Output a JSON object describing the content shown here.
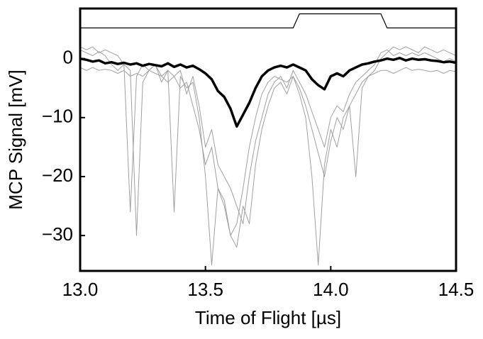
{
  "chart_data": {
    "type": "line",
    "x_label": "Time of Flight [µs]",
    "y_label": "MCP Signal [mV]",
    "xlim": [
      13.0,
      14.5
    ],
    "ylim": [
      -36,
      8.5
    ],
    "xticks": [
      {
        "value": 13.0,
        "label": "13.0"
      },
      13.5,
      {
        "value": 14.0,
        "label": "14.0"
      },
      14.5
    ],
    "yticks": [
      0,
      {
        "value": -10,
        "label": "−10"
      },
      {
        "value": -20,
        "label": "−20"
      },
      {
        "value": -30,
        "label": "−30"
      }
    ],
    "x": [
      13.0,
      13.025,
      13.05,
      13.075,
      13.1,
      13.125,
      13.15,
      13.175,
      13.2,
      13.225,
      13.25,
      13.275,
      13.3,
      13.325,
      13.35,
      13.375,
      13.4,
      13.425,
      13.45,
      13.475,
      13.5,
      13.525,
      13.55,
      13.575,
      13.6,
      13.625,
      13.65,
      13.675,
      13.7,
      13.725,
      13.75,
      13.775,
      13.8,
      13.825,
      13.85,
      13.875,
      13.9,
      13.925,
      13.95,
      13.975,
      14.0,
      14.025,
      14.05,
      14.075,
      14.1,
      14.125,
      14.15,
      14.175,
      14.2,
      14.225,
      14.25,
      14.275,
      14.3,
      14.325,
      14.35,
      14.375,
      14.4,
      14.425,
      14.45,
      14.475,
      14.5
    ],
    "series": [
      {
        "color": "#a0a0a0",
        "line_width": 1,
        "values": [
          1.5,
          1,
          0.5,
          1.2,
          0.5,
          -1,
          -2,
          -1,
          -26,
          -3,
          -1,
          -2,
          -1,
          -4,
          -2,
          -3,
          -2,
          -6,
          -3,
          -8,
          -15,
          -12,
          -18,
          -20,
          -22,
          -25,
          -28,
          -20,
          -14,
          -10,
          -6,
          -4,
          -3,
          -5,
          -2,
          -4,
          -6,
          -9,
          -12,
          -15,
          -10,
          -8,
          -9,
          -6,
          -4,
          -3,
          -2,
          -1,
          1,
          1.5,
          0.5,
          1,
          0.5,
          1,
          0.5,
          1,
          0.5,
          0,
          -0.5,
          0,
          -0.5
        ]
      },
      {
        "color": "#a0a0a0",
        "line_width": 1,
        "values": [
          2,
          1.5,
          2,
          1,
          1.5,
          1,
          0.5,
          -1,
          -2,
          -30,
          -4,
          -2,
          -1,
          -3,
          -2,
          -26,
          -3,
          -5,
          -4,
          -10,
          -20,
          -35,
          -22,
          -24,
          -30,
          -32,
          -25,
          -28,
          -18,
          -12,
          -8,
          -5,
          -4,
          -6,
          -3,
          -6,
          -10,
          -20,
          -35,
          -18,
          -12,
          -15,
          -10,
          -8,
          -20,
          -5,
          -3,
          -2,
          0,
          1,
          2,
          1.5,
          2,
          1.5,
          1,
          2,
          1.5,
          1,
          1.5,
          1,
          0.5
        ]
      },
      {
        "color": "#a0a0a0",
        "line_width": 1,
        "values": [
          -1.5,
          -2,
          -1.5,
          -2,
          -1.8,
          -2,
          -2.5,
          -2,
          -3,
          -2.5,
          -3,
          -2,
          -2.5,
          -3,
          -4,
          -3,
          -5,
          -4,
          -8,
          -12,
          -18,
          -15,
          -22,
          -25,
          -30,
          -28,
          -22,
          -15,
          -10,
          -6,
          -4,
          -3,
          -3.5,
          -4,
          -3,
          -5,
          -8,
          -12,
          -16,
          -20,
          -14,
          -10,
          -12,
          -8,
          -6,
          -4,
          -3,
          -2.5,
          -2,
          -2,
          -2.5,
          -2,
          -1.5,
          -2,
          -1.8,
          -2,
          -2.2,
          -2,
          -2.5,
          -2,
          -2.2
        ]
      },
      {
        "color": "#000000",
        "line_width": 3.5,
        "values": [
          0,
          -0.2,
          -0.5,
          -0.3,
          -0.8,
          -0.6,
          -0.9,
          -0.7,
          -1.0,
          -0.8,
          -1.2,
          -0.9,
          -1.1,
          -1.3,
          -0.8,
          -1.4,
          -1.0,
          -1.5,
          -1.2,
          -1.8,
          -2.5,
          -3.5,
          -5.5,
          -6.5,
          -8.5,
          -11.5,
          -9.5,
          -7.5,
          -5,
          -3,
          -2,
          -1.5,
          -1.2,
          -1.5,
          -1.0,
          -1.5,
          -2.0,
          -3.5,
          -4.5,
          -5.2,
          -3.0,
          -2.5,
          -3.0,
          -2.0,
          -1.5,
          -1.0,
          -0.8,
          -0.5,
          -0.3,
          0,
          -0.2,
          0.1,
          -0.3,
          0,
          -0.2,
          -0.1,
          -0.3,
          -0.4,
          -0.6,
          -0.5,
          -0.7
        ]
      },
      {
        "color": "#000000",
        "line_width": 1.2,
        "values": [
          5.2,
          5.2,
          5.2,
          5.2,
          5.2,
          5.2,
          5.2,
          5.2,
          5.2,
          5.2,
          5.2,
          5.2,
          5.2,
          5.2,
          5.2,
          5.2,
          5.2,
          5.2,
          5.2,
          5.2,
          5.2,
          5.2,
          5.2,
          5.2,
          5.2,
          5.2,
          5.2,
          5.2,
          5.2,
          5.2,
          5.2,
          5.2,
          5.2,
          5.2,
          5.2,
          7.6,
          7.6,
          7.6,
          7.6,
          7.6,
          7.6,
          7.6,
          7.6,
          7.6,
          7.6,
          7.6,
          7.6,
          7.6,
          7.6,
          5.2,
          5.2,
          5.2,
          5.2,
          5.2,
          5.2,
          5.2,
          5.2,
          5.2,
          5.2,
          5.2,
          5.2
        ]
      }
    ]
  }
}
